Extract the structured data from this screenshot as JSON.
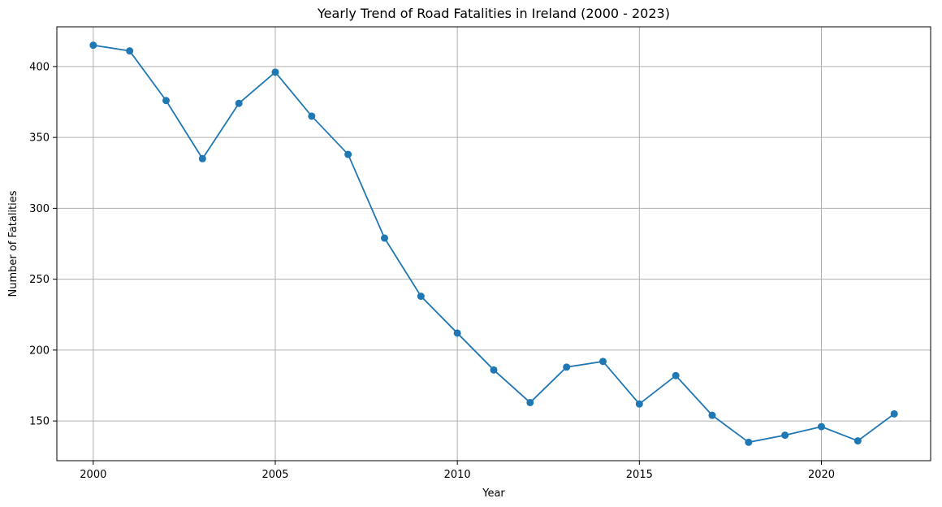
{
  "colors": {
    "series": "#1f77b4",
    "grid": "#b0b0b0",
    "background": "#ffffff"
  },
  "chart_data": {
    "type": "line",
    "title": "Yearly Trend of Road Fatalities in Ireland (2000 - 2023)",
    "xlabel": "Year",
    "ylabel": "Number of Fatalities",
    "xlim": [
      1999,
      2023
    ],
    "ylim": [
      122,
      428
    ],
    "xticks": [
      2000,
      2005,
      2010,
      2015,
      2020
    ],
    "yticks": [
      150,
      200,
      250,
      300,
      350,
      400
    ],
    "grid": true,
    "marker": "circle",
    "x": [
      2000,
      2001,
      2002,
      2003,
      2004,
      2005,
      2006,
      2007,
      2008,
      2009,
      2010,
      2011,
      2012,
      2013,
      2014,
      2015,
      2016,
      2017,
      2018,
      2019,
      2020,
      2021,
      2022
    ],
    "series": [
      {
        "values": [
          415,
          411,
          376,
          335,
          374,
          396,
          365,
          338,
          279,
          238,
          212,
          186,
          163,
          188,
          192,
          162,
          182,
          154,
          135,
          140,
          146,
          136,
          155
        ]
      }
    ]
  }
}
